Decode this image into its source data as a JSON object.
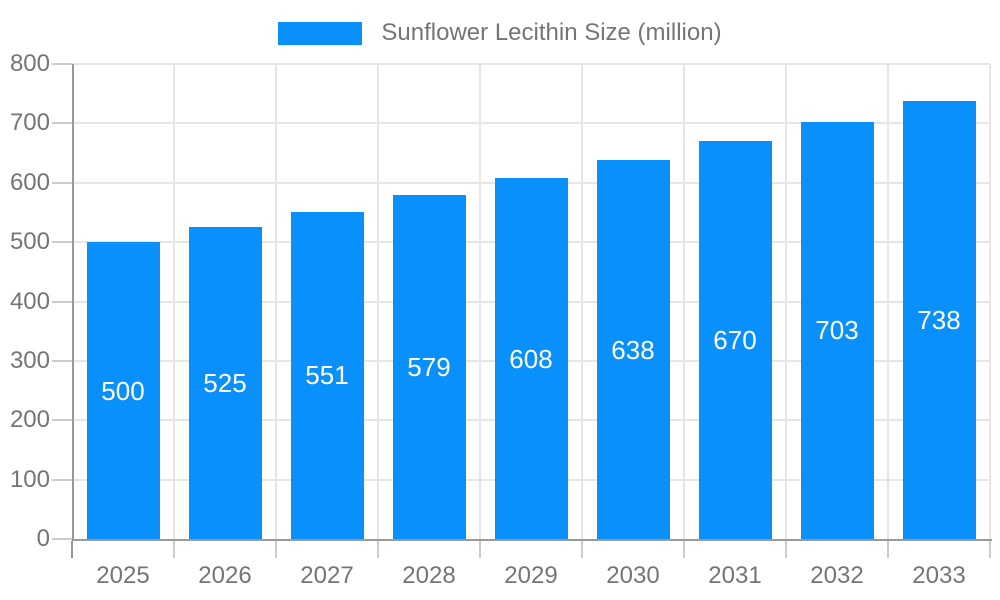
{
  "chart_data": {
    "type": "bar",
    "title": "Sunflower Lecithin Size (million)",
    "legend": [
      "Sunflower Lecithin Size (million)"
    ],
    "legend_position": "top-center",
    "categories": [
      "2025",
      "2026",
      "2027",
      "2028",
      "2029",
      "2030",
      "2031",
      "2032",
      "2033"
    ],
    "values": [
      500,
      525,
      551,
      579,
      608,
      638,
      670,
      703,
      738
    ],
    "xlabel": "",
    "ylabel": "",
    "ylim": [
      0,
      800
    ],
    "yticks": [
      0,
      100,
      200,
      300,
      400,
      500,
      600,
      700,
      800
    ],
    "grid": true,
    "value_labels": "inside-middle",
    "colors": {
      "bar": "#0a90fa",
      "value_label": "#ffffff",
      "axis_text": "#757575",
      "axis_line": "#999999",
      "tick": "#cccccc",
      "gridline": "#e6e6e6",
      "background": "#ffffff"
    }
  }
}
